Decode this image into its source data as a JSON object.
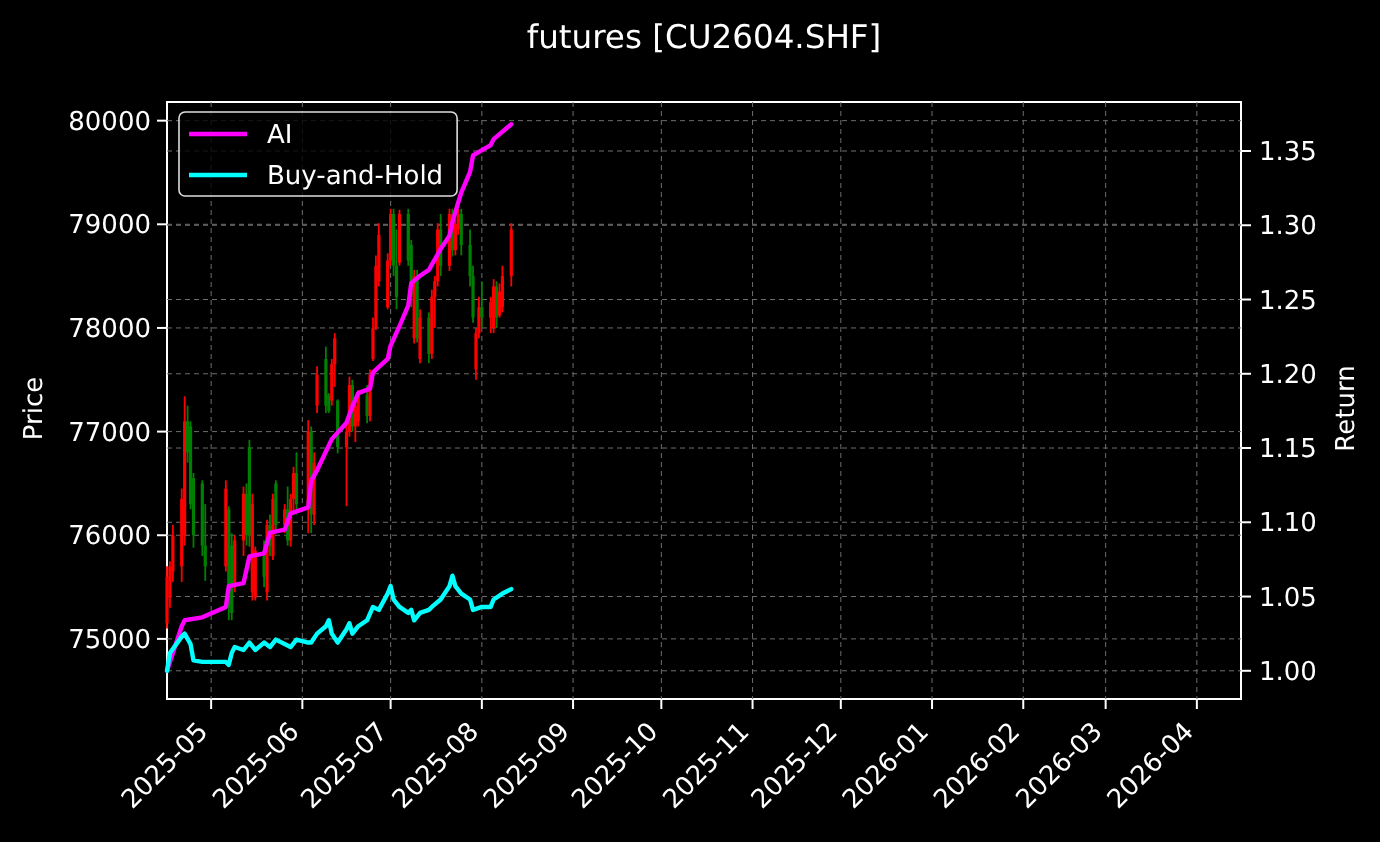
{
  "chart_data": {
    "type": "candlestick",
    "title": "futures [CU2604.SHF]",
    "ylabel": "Price",
    "y2label": "Return",
    "x": [
      "2025-04-16",
      "2025-04-17",
      "2025-04-18",
      "2025-04-21",
      "2025-04-22",
      "2025-04-23",
      "2025-04-24",
      "2025-04-25",
      "2025-04-28",
      "2025-04-29",
      "2025-05-06",
      "2025-05-07",
      "2025-05-08",
      "2025-05-09",
      "2025-05-12",
      "2025-05-13",
      "2025-05-14",
      "2025-05-15",
      "2025-05-16",
      "2025-05-19",
      "2025-05-20",
      "2025-05-21",
      "2025-05-22",
      "2025-05-23",
      "2025-05-26",
      "2025-05-27",
      "2025-05-28",
      "2025-05-29",
      "2025-05-30",
      "2025-06-03",
      "2025-06-04",
      "2025-06-05",
      "2025-06-06",
      "2025-06-09",
      "2025-06-10",
      "2025-06-11",
      "2025-06-12",
      "2025-06-13",
      "2025-06-16",
      "2025-06-17",
      "2025-06-18",
      "2025-06-19",
      "2025-06-20",
      "2025-06-23",
      "2025-06-24",
      "2025-06-25",
      "2025-06-26",
      "2025-06-27",
      "2025-06-30",
      "2025-07-01",
      "2025-07-02",
      "2025-07-03",
      "2025-07-04",
      "2025-07-07",
      "2025-07-08",
      "2025-07-09",
      "2025-07-10",
      "2025-07-11",
      "2025-07-14",
      "2025-07-15",
      "2025-07-16",
      "2025-07-17",
      "2025-07-18",
      "2025-07-21",
      "2025-07-22",
      "2025-07-23",
      "2025-07-24",
      "2025-07-25",
      "2025-07-28",
      "2025-07-29",
      "2025-07-30",
      "2025-07-31",
      "2025-08-01",
      "2025-08-04",
      "2025-08-05",
      "2025-08-06",
      "2025-08-07",
      "2025-08-08",
      "2025-08-11"
    ],
    "ohlc": [
      [
        75150,
        75700,
        75100,
        75600
      ],
      [
        75400,
        75750,
        75300,
        75700
      ],
      [
        75650,
        76100,
        75550,
        76000
      ],
      [
        75700,
        76450,
        75550,
        76350
      ],
      [
        76000,
        77340,
        75900,
        77100
      ],
      [
        77100,
        77250,
        76700,
        76800
      ],
      [
        77050,
        77100,
        76250,
        76300
      ],
      [
        76550,
        76600,
        75880,
        76000
      ],
      [
        76500,
        76530,
        75800,
        75900
      ],
      [
        75900,
        76300,
        75560,
        75700
      ],
      [
        75700,
        76530,
        75650,
        76450
      ],
      [
        76250,
        76280,
        75180,
        75300
      ],
      [
        75900,
        76020,
        75180,
        75250
      ],
      [
        75500,
        76000,
        75450,
        75950
      ],
      [
        75950,
        76470,
        75800,
        76400
      ],
      [
        76400,
        76500,
        75900,
        76000
      ],
      [
        76850,
        76920,
        75890,
        76000
      ],
      [
        75450,
        76400,
        75370,
        76300
      ],
      [
        75400,
        75890,
        75370,
        75850
      ],
      [
        75850,
        75950,
        75500,
        75600
      ],
      [
        75450,
        76150,
        75370,
        76100
      ],
      [
        76100,
        76200,
        75800,
        75900
      ],
      [
        75800,
        76400,
        75760,
        76350
      ],
      [
        76500,
        76530,
        76020,
        76100
      ],
      [
        76100,
        76300,
        76020,
        76250
      ],
      [
        76250,
        76470,
        75900,
        75950
      ],
      [
        75950,
        76400,
        75890,
        76350
      ],
      [
        76350,
        76660,
        76200,
        76600
      ],
      [
        76600,
        76800,
        76200,
        76300
      ],
      [
        76300,
        77110,
        76020,
        77000
      ],
      [
        77000,
        77050,
        76020,
        76200
      ],
      [
        76200,
        76800,
        76100,
        76700
      ],
      [
        77250,
        77630,
        77180,
        77550
      ],
      [
        77700,
        77820,
        77180,
        77250
      ],
      [
        77350,
        77370,
        77180,
        77200
      ],
      [
        77300,
        77700,
        77250,
        77650
      ],
      [
        77650,
        77950,
        77430,
        77900
      ],
      [
        77300,
        77310,
        76790,
        76850
      ],
      [
        76850,
        77110,
        76280,
        77000
      ],
      [
        77000,
        77530,
        76950,
        77450
      ],
      [
        77450,
        77500,
        77000,
        77050
      ],
      [
        77050,
        77300,
        76900,
        77250
      ],
      [
        77100,
        77400,
        77050,
        77350
      ],
      [
        77350,
        77450,
        77080,
        77150
      ],
      [
        77150,
        77600,
        77100,
        77550
      ],
      [
        77700,
        78100,
        77680,
        78000
      ],
      [
        78000,
        78700,
        77980,
        78600
      ],
      [
        78450,
        79010,
        78400,
        78900
      ],
      [
        78200,
        78720,
        78180,
        78650
      ],
      [
        78650,
        79150,
        78600,
        79100
      ],
      [
        79100,
        79150,
        78500,
        78600
      ],
      [
        78600,
        78950,
        78180,
        78300
      ],
      [
        78630,
        79140,
        78600,
        79100
      ],
      [
        79100,
        79150,
        78600,
        78650
      ],
      [
        78800,
        78850,
        78200,
        78300
      ],
      [
        77900,
        78560,
        77850,
        78500
      ],
      [
        78500,
        78560,
        77860,
        77900
      ],
      [
        77700,
        78180,
        77660,
        78100
      ],
      [
        78100,
        78150,
        77660,
        77750
      ],
      [
        77750,
        78370,
        77700,
        78300
      ],
      [
        78300,
        78500,
        78000,
        78450
      ],
      [
        78450,
        79010,
        78400,
        78950
      ],
      [
        78950,
        79100,
        78500,
        78600
      ],
      [
        78600,
        79150,
        78550,
        79100
      ],
      [
        79100,
        79150,
        78690,
        78750
      ],
      [
        78750,
        79050,
        78700,
        79000
      ],
      [
        78950,
        79150,
        78900,
        79100
      ],
      [
        79100,
        79150,
        78700,
        78800
      ],
      [
        78800,
        78950,
        78400,
        78500
      ],
      [
        78500,
        78600,
        78050,
        78100
      ],
      [
        77600,
        78000,
        77500,
        77950
      ],
      [
        77950,
        78300,
        77900,
        78200
      ],
      [
        78200,
        78450,
        78000,
        78100
      ],
      [
        78100,
        78300,
        77950,
        78250
      ],
      [
        78000,
        78470,
        77950,
        78400
      ],
      [
        78400,
        78450,
        78000,
        78100
      ],
      [
        78120,
        78430,
        78100,
        78350
      ],
      [
        78200,
        78600,
        78150,
        78500
      ],
      [
        78500,
        79010,
        78400,
        78950
      ]
    ],
    "colors": [
      "#ff0000",
      "#ff0000",
      "#ff0000",
      "#ff0000",
      "#ff0000",
      "#008000",
      "#008000",
      "#008000",
      "#008000",
      "#008000",
      "#ff0000",
      "#008000",
      "#008000",
      "#ff0000",
      "#ff0000",
      "#008000",
      "#008000",
      "#ff0000",
      "#ff0000",
      "#008000",
      "#ff0000",
      "#008000",
      "#ff0000",
      "#008000",
      "#ff0000",
      "#008000",
      "#ff0000",
      "#ff0000",
      "#008000",
      "#ff0000",
      "#008000",
      "#ff0000",
      "#ff0000",
      "#008000",
      "#008000",
      "#ff0000",
      "#ff0000",
      "#008000",
      "#ff0000",
      "#ff0000",
      "#008000",
      "#ff0000",
      "#ff0000",
      "#008000",
      "#ff0000",
      "#ff0000",
      "#ff0000",
      "#ff0000",
      "#ff0000",
      "#ff0000",
      "#008000",
      "#008000",
      "#ff0000",
      "#008000",
      "#008000",
      "#ff0000",
      "#008000",
      "#ff0000",
      "#008000",
      "#ff0000",
      "#ff0000",
      "#ff0000",
      "#008000",
      "#ff0000",
      "#008000",
      "#ff0000",
      "#ff0000",
      "#008000",
      "#008000",
      "#008000",
      "#ff0000",
      "#ff0000",
      "#008000",
      "#ff0000",
      "#ff0000",
      "#008000",
      "#ff0000",
      "#ff0000",
      "#ff0000"
    ],
    "series": [
      {
        "name": "AI",
        "type": "line",
        "axis": "y2",
        "color": "#ff00ff",
        "x": [
          "2025-04-16",
          "2025-04-21",
          "2025-04-22",
          "2025-04-28",
          "2025-05-06",
          "2025-05-07",
          "2025-05-12",
          "2025-05-14",
          "2025-05-19",
          "2025-05-21",
          "2025-05-26",
          "2025-05-28",
          "2025-06-03",
          "2025-06-04",
          "2025-06-06",
          "2025-06-11",
          "2025-06-16",
          "2025-06-18",
          "2025-06-20",
          "2025-06-24",
          "2025-06-25",
          "2025-06-30",
          "2025-07-01",
          "2025-07-04",
          "2025-07-07",
          "2025-07-08",
          "2025-07-11",
          "2025-07-14",
          "2025-07-18",
          "2025-07-21",
          "2025-07-22",
          "2025-07-23",
          "2025-07-25",
          "2025-07-28",
          "2025-07-29",
          "2025-08-04",
          "2025-08-05",
          "2025-08-11"
        ],
        "values": [
          1.0,
          1.03,
          1.034,
          1.036,
          1.043,
          1.057,
          1.059,
          1.077,
          1.079,
          1.093,
          1.095,
          1.106,
          1.11,
          1.128,
          1.135,
          1.156,
          1.167,
          1.178,
          1.187,
          1.19,
          1.201,
          1.21,
          1.219,
          1.232,
          1.246,
          1.261,
          1.266,
          1.27,
          1.284,
          1.293,
          1.302,
          1.309,
          1.322,
          1.336,
          1.347,
          1.354,
          1.358,
          1.368
        ]
      },
      {
        "name": "Buy-and-Hold",
        "type": "line",
        "axis": "y2",
        "color": "#00ffff",
        "x": [
          "2025-04-16",
          "2025-04-17",
          "2025-04-21",
          "2025-04-22",
          "2025-04-24",
          "2025-04-25",
          "2025-04-28",
          "2025-05-06",
          "2025-05-07",
          "2025-05-08",
          "2025-05-09",
          "2025-05-12",
          "2025-05-14",
          "2025-05-16",
          "2025-05-19",
          "2025-05-21",
          "2025-05-23",
          "2025-05-28",
          "2025-05-30",
          "2025-06-03",
          "2025-06-04",
          "2025-06-06",
          "2025-06-09",
          "2025-06-10",
          "2025-06-11",
          "2025-06-13",
          "2025-06-16",
          "2025-06-17",
          "2025-06-18",
          "2025-06-20",
          "2025-06-23",
          "2025-06-25",
          "2025-06-27",
          "2025-06-30",
          "2025-07-01",
          "2025-07-02",
          "2025-07-04",
          "2025-07-07",
          "2025-07-08",
          "2025-07-09",
          "2025-07-11",
          "2025-07-14",
          "2025-07-15",
          "2025-07-18",
          "2025-07-21",
          "2025-07-22",
          "2025-07-23",
          "2025-07-25",
          "2025-07-28",
          "2025-07-29",
          "2025-08-01",
          "2025-08-04",
          "2025-08-05",
          "2025-08-08",
          "2025-08-11"
        ],
        "values": [
          1.0,
          1.012,
          1.023,
          1.025,
          1.018,
          1.007,
          1.006,
          1.006,
          1.004,
          1.012,
          1.016,
          1.014,
          1.019,
          1.014,
          1.019,
          1.016,
          1.021,
          1.016,
          1.021,
          1.019,
          1.019,
          1.025,
          1.03,
          1.034,
          1.025,
          1.019,
          1.028,
          1.032,
          1.025,
          1.03,
          1.034,
          1.043,
          1.041,
          1.052,
          1.057,
          1.048,
          1.043,
          1.039,
          1.041,
          1.034,
          1.039,
          1.041,
          1.043,
          1.048,
          1.057,
          1.064,
          1.057,
          1.052,
          1.048,
          1.041,
          1.043,
          1.043,
          1.048,
          1.052,
          1.055
        ]
      }
    ],
    "xlim": [
      "2025-04-16",
      "2026-04-16"
    ],
    "xticks": [
      "2025-05",
      "2025-06",
      "2025-07",
      "2025-08",
      "2025-09",
      "2025-10",
      "2025-11",
      "2025-12",
      "2026-01",
      "2026-02",
      "2026-03",
      "2026-04"
    ],
    "ylim": [
      74420,
      80180
    ],
    "yticks": [
      75000,
      76000,
      77000,
      78000,
      79000,
      80000
    ],
    "y2lim": [
      0.981,
      1.383
    ],
    "y2ticks": [
      {
        "value": 1,
        "label": "1.00"
      },
      1.05,
      {
        "value": 1.1,
        "label": "1.10"
      },
      1.15,
      {
        "value": 1.2,
        "label": "1.20"
      },
      1.25,
      {
        "value": 1.3,
        "label": "1.30"
      },
      1.35
    ],
    "grid": true,
    "legend": "top left"
  }
}
